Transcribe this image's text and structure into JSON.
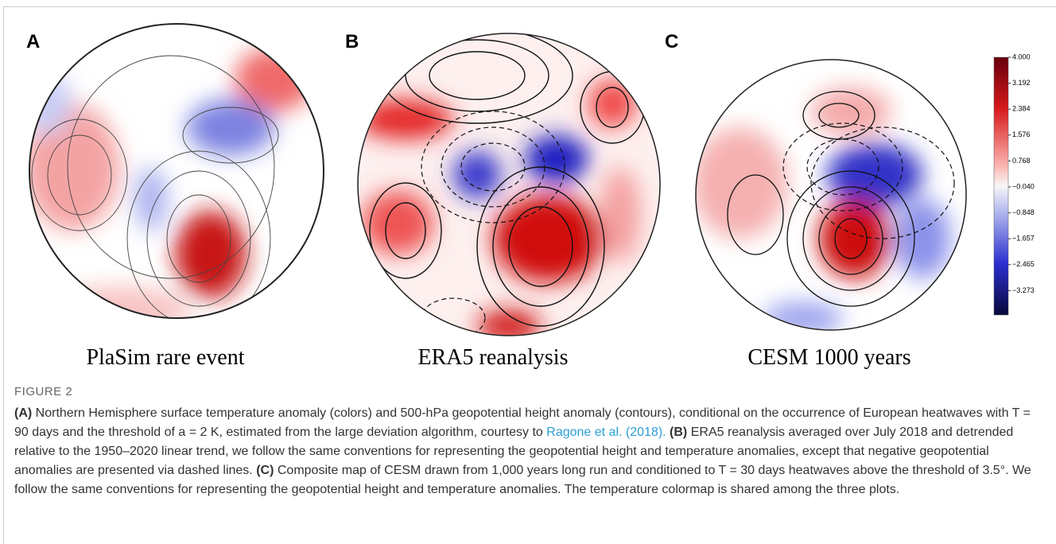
{
  "panels": [
    {
      "letter": "A",
      "label": "PlaSim rare event"
    },
    {
      "letter": "B",
      "label": "ERA5 reanalysis"
    },
    {
      "letter": "C",
      "label": "CESM 1000 years"
    }
  ],
  "colorbar": {
    "ticks": [
      "4.000",
      "3.192",
      "2.384",
      "1.576",
      "0.768",
      "−0.040",
      "−0.848",
      "−1.657",
      "−2.465",
      "−3.273"
    ]
  },
  "figure_label": "FIGURE 2",
  "caption": {
    "a_label": "(A)",
    "a_text": " Northern Hemisphere surface temperature anomaly (colors) and 500-hPa geopotential height anomaly (contours), conditional on the occurrence of European heatwaves with T = 90 days and the threshold of a = 2 K, estimated from the large deviation algorithm, courtesy to ",
    "a_link": "Ragone et al. (2018).",
    "b_label": "(B)",
    "b_text": " ERA5 reanalysis averaged over July 2018 and detrended relative to the 1950–2020 linear trend, we follow the same conventions for representing the geopotential height and temperature anomalies, except that negative geopotential anomalies are presented via dashed lines.",
    "c_label": "(C)",
    "c_text": " Composite map of CESM drawn from 1,000 years long run and conditioned to T = 30 days heatwaves above the threshold of 3.5°. We follow the same conventions for representing the geopotential height and temperature anomalies. The temperature colormap is shared among the three plots."
  }
}
